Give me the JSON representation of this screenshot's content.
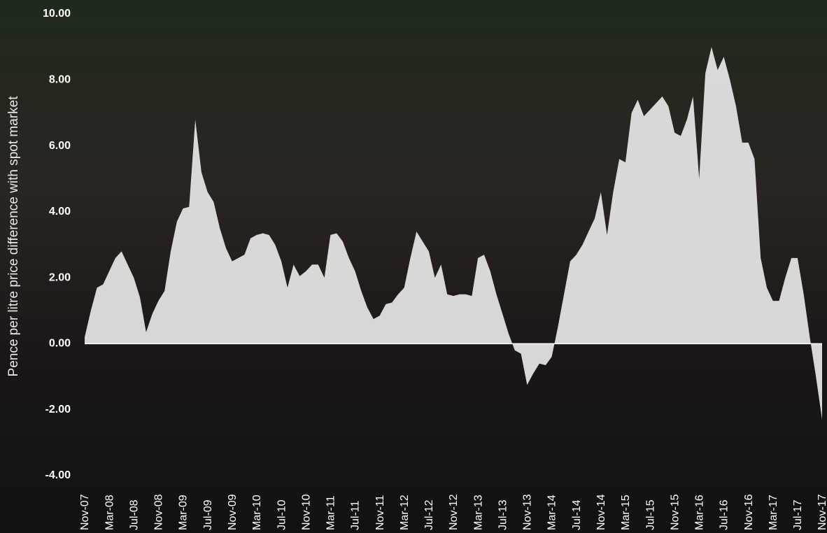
{
  "chart_data": {
    "type": "area",
    "y_label": "Pence per litre price difference with spot market",
    "color": "#ececec",
    "ylim": [
      -4,
      10
    ],
    "yticks": [
      {
        "value": -4,
        "label": "-4.00"
      },
      {
        "value": -2,
        "label": "-2.00"
      },
      {
        "value": 0,
        "label": "0.00"
      },
      {
        "value": 2,
        "label": "2.00"
      },
      {
        "value": 4,
        "label": "4.00"
      },
      {
        "value": 6,
        "label": "6.00"
      },
      {
        "value": 8,
        "label": "8.00"
      },
      {
        "value": 10,
        "label": "10.00"
      }
    ],
    "categories": [
      "Nov-07",
      null,
      null,
      null,
      "Mar-08",
      null,
      null,
      null,
      "Jul-08",
      null,
      null,
      null,
      "Nov-08",
      null,
      null,
      null,
      "Mar-09",
      null,
      null,
      null,
      "Jul-09",
      null,
      null,
      null,
      "Nov-09",
      null,
      null,
      null,
      "Mar-10",
      null,
      null,
      null,
      "Jul-10",
      null,
      null,
      null,
      "Nov-10",
      null,
      null,
      null,
      "Mar-11",
      null,
      null,
      null,
      "Jul-11",
      null,
      null,
      null,
      "Nov-11",
      null,
      null,
      null,
      "Mar-12",
      null,
      null,
      null,
      "Jul-12",
      null,
      null,
      null,
      "Nov-12",
      null,
      null,
      null,
      "Mar-13",
      null,
      null,
      null,
      "Jul-13",
      null,
      null,
      null,
      "Nov-13",
      null,
      null,
      null,
      "Mar-14",
      null,
      null,
      null,
      "Jul-14",
      null,
      null,
      null,
      "Nov-14",
      null,
      null,
      null,
      "Mar-15",
      null,
      null,
      null,
      "Jul-15",
      null,
      null,
      null,
      "Nov-15",
      null,
      null,
      null,
      "Mar-16",
      null,
      null,
      null,
      "Jul-16",
      null,
      null,
      null,
      "Nov-16",
      null,
      null,
      null,
      "Mar-17",
      null,
      null,
      null,
      "Jul-17",
      null,
      null,
      null,
      "Nov-17"
    ],
    "values": [
      0.2,
      1.0,
      1.7,
      1.8,
      2.2,
      2.6,
      2.8,
      2.4,
      2.0,
      1.4,
      0.35,
      0.9,
      1.3,
      1.6,
      2.8,
      3.7,
      4.1,
      4.15,
      6.8,
      5.2,
      4.6,
      4.3,
      3.5,
      2.9,
      2.5,
      2.6,
      2.7,
      3.2,
      3.3,
      3.35,
      3.3,
      3.0,
      2.5,
      1.7,
      2.4,
      2.05,
      2.2,
      2.4,
      2.4,
      2.0,
      3.3,
      3.35,
      3.1,
      2.6,
      2.2,
      1.6,
      1.1,
      0.75,
      0.85,
      1.2,
      1.25,
      1.5,
      1.7,
      2.6,
      3.4,
      3.1,
      2.8,
      2.0,
      2.4,
      1.5,
      1.45,
      1.5,
      1.5,
      1.45,
      2.6,
      2.7,
      2.2,
      1.5,
      0.9,
      0.3,
      -0.2,
      -0.3,
      -1.25,
      -0.9,
      -0.6,
      -0.65,
      -0.4,
      0.5,
      1.5,
      2.5,
      2.7,
      3.0,
      3.4,
      3.8,
      4.6,
      3.3,
      4.6,
      5.6,
      5.5,
      7.0,
      7.4,
      6.9,
      7.1,
      7.3,
      7.5,
      7.2,
      6.4,
      6.3,
      6.8,
      7.5,
      5.0,
      8.2,
      9.0,
      8.3,
      8.7,
      8.0,
      7.2,
      6.1,
      6.1,
      5.6,
      2.6,
      1.7,
      1.3,
      1.3,
      2.0,
      2.6,
      2.6,
      1.5,
      0.2,
      -1.0,
      -2.3
    ]
  }
}
